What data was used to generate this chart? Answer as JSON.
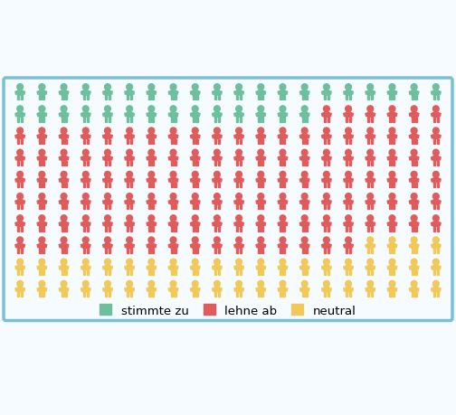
{
  "total": 200,
  "cols": 20,
  "rows": 10,
  "counts": {
    "green": 34,
    "red": 122,
    "yellow": 44
  },
  "colors": {
    "green": "#6dbf9e",
    "red": "#e05c5c",
    "yellow": "#f0c959"
  },
  "background": "#f5fbff",
  "border_color": "#7bbfd4",
  "legend": [
    {
      "label": "stimmte zu",
      "color": "#6dbf9e"
    },
    {
      "label": "lehne ab",
      "color": "#e05c5c"
    },
    {
      "label": "neutral",
      "color": "#f0c959"
    }
  ],
  "legend_fontsize": 9.5,
  "figure_size": [
    5.04,
    4.6
  ],
  "dpi": 100
}
